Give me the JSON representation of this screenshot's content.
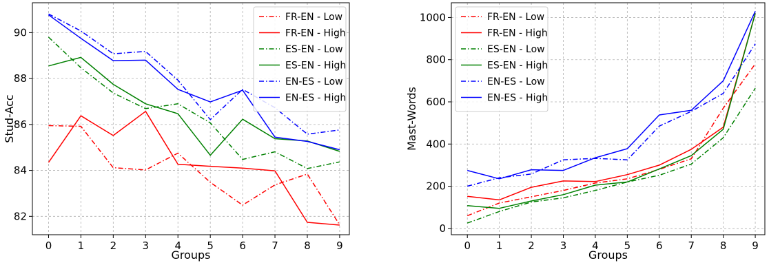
{
  "chart_data": [
    {
      "type": "line",
      "xlabel": "Groups",
      "ylabel": "Stud-Acc",
      "x": [
        0,
        1,
        2,
        3,
        4,
        5,
        6,
        7,
        8,
        9
      ],
      "xlim": [
        -0.5,
        9.3
      ],
      "ylim": [
        81.2,
        91.3
      ],
      "yticks": [
        82,
        84,
        86,
        88,
        90
      ],
      "grid": true,
      "legend_position": "top-right",
      "series": [
        {
          "name": "FR-EN - Low",
          "color": "#ff0000",
          "dash": "dashdot",
          "values": [
            85.95,
            85.92,
            84.12,
            84.02,
            84.75,
            83.48,
            82.49,
            83.37,
            83.84,
            81.63
          ]
        },
        {
          "name": "FR-EN - High",
          "color": "#ff0000",
          "dash": "solid",
          "values": [
            84.35,
            86.38,
            85.52,
            86.57,
            84.27,
            84.18,
            84.1,
            83.98,
            81.74,
            81.62
          ]
        },
        {
          "name": "ES-EN - Low",
          "color": "#008000",
          "dash": "dashdot",
          "values": [
            89.8,
            88.47,
            87.37,
            86.69,
            86.9,
            86.07,
            84.48,
            84.81,
            84.08,
            84.37
          ]
        },
        {
          "name": "ES-EN - High",
          "color": "#008000",
          "dash": "solid",
          "values": [
            88.55,
            88.92,
            87.75,
            86.9,
            86.47,
            84.66,
            86.23,
            85.38,
            85.28,
            84.83
          ]
        },
        {
          "name": "EN-ES - Low",
          "color": "#0000ff",
          "dash": "dashdot",
          "values": [
            90.81,
            90.07,
            89.08,
            89.18,
            87.93,
            86.21,
            87.53,
            86.73,
            85.58,
            85.76
          ]
        },
        {
          "name": "EN-ES - High",
          "color": "#0000ff",
          "dash": "solid",
          "values": [
            90.77,
            89.75,
            88.78,
            88.8,
            87.53,
            86.98,
            87.49,
            85.45,
            85.26,
            84.9
          ]
        }
      ]
    },
    {
      "type": "line",
      "xlabel": "Groups",
      "ylabel": "Mast-Words",
      "x": [
        0,
        1,
        2,
        3,
        4,
        5,
        6,
        7,
        8,
        9
      ],
      "xlim": [
        -0.5,
        9.3
      ],
      "ylim": [
        -30,
        1070
      ],
      "yticks": [
        0,
        200,
        400,
        600,
        800,
        1000
      ],
      "grid": true,
      "legend_position": "top-left",
      "series": [
        {
          "name": "FR-EN - Low",
          "color": "#ff0000",
          "dash": "dashdot",
          "values": [
            60,
            120,
            150,
            180,
            215,
            235,
            280,
            330,
            570,
            780
          ]
        },
        {
          "name": "FR-EN - High",
          "color": "#ff0000",
          "dash": "solid",
          "values": [
            152,
            135,
            195,
            225,
            222,
            255,
            300,
            375,
            480,
            1020
          ]
        },
        {
          "name": "ES-EN - Low",
          "color": "#008000",
          "dash": "dashdot",
          "values": [
            25,
            80,
            125,
            145,
            180,
            220,
            252,
            305,
            430,
            665
          ]
        },
        {
          "name": "ES-EN - High",
          "color": "#008000",
          "dash": "solid",
          "values": [
            108,
            95,
            130,
            160,
            205,
            220,
            282,
            345,
            470,
            1020
          ]
        },
        {
          "name": "EN-ES - Low",
          "color": "#0000ff",
          "dash": "dashdot",
          "values": [
            200,
            240,
            258,
            325,
            332,
            325,
            485,
            555,
            640,
            875
          ]
        },
        {
          "name": "EN-ES - High",
          "color": "#0000ff",
          "dash": "solid",
          "values": [
            275,
            235,
            278,
            275,
            335,
            378,
            538,
            560,
            700,
            1030
          ]
        }
      ]
    }
  ]
}
